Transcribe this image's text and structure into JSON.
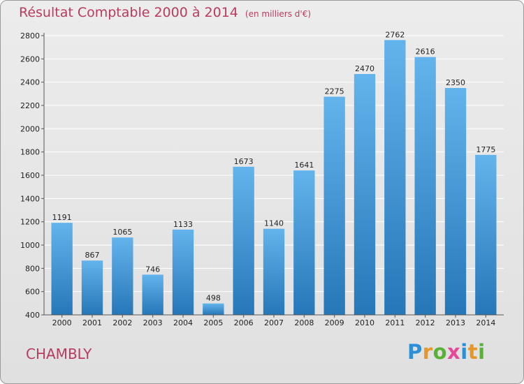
{
  "title": "Résultat Comptable 2000 à 2014",
  "subtitle": "(en milliers d'€)",
  "place": "CHAMBLY",
  "logo": {
    "letters": [
      "P",
      "r",
      "o",
      "x",
      "i",
      "t",
      "i"
    ],
    "colors": [
      "#2c8fd8",
      "#e5972a",
      "#58b335",
      "#e64a97",
      "#2c8fd8",
      "#e5972a",
      "#58b335"
    ]
  },
  "colors": {
    "bar_light": "#63b3ec",
    "bar_dark": "#2677b8",
    "title": "#b83b60",
    "grid": "#ffffff"
  },
  "chart_data": {
    "type": "bar",
    "categories": [
      "2000",
      "2001",
      "2002",
      "2003",
      "2004",
      "2005",
      "2006",
      "2007",
      "2008",
      "2009",
      "2010",
      "2011",
      "2012",
      "2013",
      "2014"
    ],
    "values": [
      1191,
      867,
      1065,
      746,
      1133,
      498,
      1673,
      1140,
      1641,
      2275,
      2470,
      2762,
      2616,
      2350,
      1775
    ],
    "ylim": [
      400,
      2800
    ],
    "yticks": [
      400,
      600,
      800,
      1000,
      1200,
      1400,
      1600,
      1800,
      2000,
      2200,
      2400,
      2600,
      2800
    ],
    "grid": true,
    "legend": "none"
  }
}
